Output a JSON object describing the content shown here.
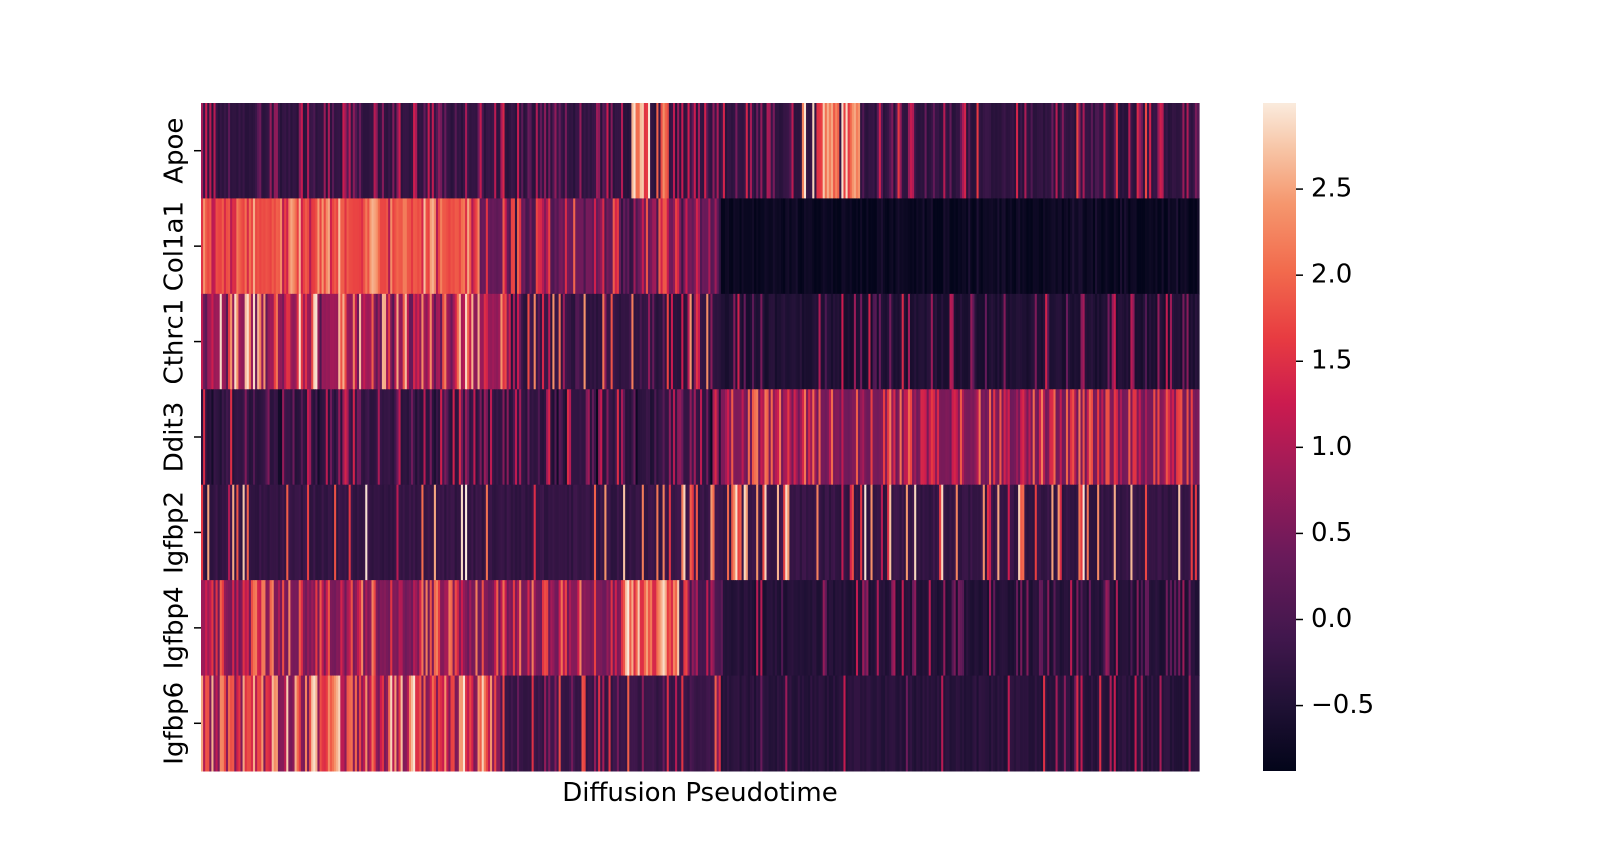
{
  "chart_data": {
    "type": "heatmap",
    "xlabel": "Diffusion Pseudotime",
    "ylabel": "",
    "rows": [
      "Apoe",
      "Col1a1",
      "Cthrc1",
      "Ddit3",
      "Igfbp2",
      "Igfbp4",
      "Igfbp6"
    ],
    "x_ticks": "none",
    "colormap": "rocket",
    "colorbar": {
      "vmin": -0.88,
      "vmax": 3.0,
      "ticks": [
        -0.5,
        0.0,
        0.5,
        1.0,
        1.5,
        2.0,
        2.5
      ],
      "tick_labels": [
        "−0.5",
        "0.0",
        "0.5",
        "1.0",
        "1.5",
        "2.0",
        "2.5"
      ]
    },
    "column_count": 480,
    "row_profiles": [
      {
        "gene": "Apoe",
        "segments": [
          {
            "pseudotime_fraction": [
              0.0,
              0.43
            ],
            "base": -0.3,
            "spike_prob": 0.35,
            "spike_range": [
              0.0,
              1.4
            ]
          },
          {
            "pseudotime_fraction": [
              0.43,
              0.47
            ],
            "base": -0.3,
            "spike_prob": 0.7,
            "spike_range": [
              1.5,
              3.0
            ]
          },
          {
            "pseudotime_fraction": [
              0.47,
              0.6
            ],
            "base": -0.3,
            "spike_prob": 0.35,
            "spike_range": [
              0.0,
              1.4
            ]
          },
          {
            "pseudotime_fraction": [
              0.6,
              0.66
            ],
            "base": -0.3,
            "spike_prob": 0.7,
            "spike_range": [
              1.5,
              3.0
            ]
          },
          {
            "pseudotime_fraction": [
              0.66,
              1.0
            ],
            "base": -0.3,
            "spike_prob": 0.35,
            "spike_range": [
              0.0,
              1.8
            ]
          }
        ]
      },
      {
        "gene": "Col1a1",
        "segments": [
          {
            "pseudotime_fraction": [
              0.0,
              0.28
            ],
            "base": 1.8,
            "spike_prob": 0.6,
            "spike_range": [
              1.0,
              2.7
            ]
          },
          {
            "pseudotime_fraction": [
              0.28,
              0.52
            ],
            "base": 0.4,
            "spike_prob": 0.55,
            "spike_range": [
              -0.3,
              2.0
            ]
          },
          {
            "pseudotime_fraction": [
              0.52,
              1.0
            ],
            "base": -0.8,
            "spike_prob": 0.15,
            "spike_range": [
              -0.7,
              -0.5
            ]
          }
        ]
      },
      {
        "gene": "Cthrc1",
        "segments": [
          {
            "pseudotime_fraction": [
              0.0,
              0.3
            ],
            "base": 0.8,
            "spike_prob": 0.65,
            "spike_range": [
              0.0,
              3.0
            ]
          },
          {
            "pseudotime_fraction": [
              0.3,
              0.52
            ],
            "base": -0.3,
            "spike_prob": 0.45,
            "spike_range": [
              -0.5,
              2.5
            ]
          },
          {
            "pseudotime_fraction": [
              0.52,
              1.0
            ],
            "base": -0.5,
            "spike_prob": 0.2,
            "spike_range": [
              0.0,
              1.5
            ]
          }
        ]
      },
      {
        "gene": "Ddit3",
        "segments": [
          {
            "pseudotime_fraction": [
              0.0,
              0.52
            ],
            "base": -0.3,
            "spike_prob": 0.5,
            "spike_range": [
              -0.8,
              1.5
            ]
          },
          {
            "pseudotime_fraction": [
              0.52,
              1.0
            ],
            "base": 0.5,
            "spike_prob": 0.6,
            "spike_range": [
              0.5,
              2.2
            ]
          }
        ]
      },
      {
        "gene": "Igfbp2",
        "segments": [
          {
            "pseudotime_fraction": [
              0.0,
              0.45
            ],
            "base": -0.25,
            "spike_prob": 0.08,
            "spike_range": [
              1.0,
              3.0
            ]
          },
          {
            "pseudotime_fraction": [
              0.45,
              0.6
            ],
            "base": -0.2,
            "spike_prob": 0.25,
            "spike_range": [
              1.5,
              3.0
            ]
          },
          {
            "pseudotime_fraction": [
              0.6,
              1.0
            ],
            "base": -0.25,
            "spike_prob": 0.18,
            "spike_range": [
              1.0,
              3.0
            ]
          }
        ]
      },
      {
        "gene": "Igfbp4",
        "segments": [
          {
            "pseudotime_fraction": [
              0.0,
              0.42
            ],
            "base": 0.5,
            "spike_prob": 0.55,
            "spike_range": [
              0.5,
              2.3
            ]
          },
          {
            "pseudotime_fraction": [
              0.42,
              0.48
            ],
            "base": 1.5,
            "spike_prob": 0.7,
            "spike_range": [
              1.8,
              3.0
            ]
          },
          {
            "pseudotime_fraction": [
              0.48,
              0.52
            ],
            "base": 0.0,
            "spike_prob": 0.4,
            "spike_range": [
              0.3,
              1.8
            ]
          },
          {
            "pseudotime_fraction": [
              0.52,
              1.0
            ],
            "base": -0.45,
            "spike_prob": 0.2,
            "spike_range": [
              0.0,
              1.2
            ]
          }
        ]
      },
      {
        "gene": "Igfbp6",
        "segments": [
          {
            "pseudotime_fraction": [
              0.0,
              0.3
            ],
            "base": 0.6,
            "spike_prob": 0.7,
            "spike_range": [
              1.0,
              3.0
            ]
          },
          {
            "pseudotime_fraction": [
              0.3,
              0.52
            ],
            "base": -0.2,
            "spike_prob": 0.35,
            "spike_range": [
              0.0,
              2.0
            ]
          },
          {
            "pseudotime_fraction": [
              0.52,
              1.0
            ],
            "base": -0.4,
            "spike_prob": 0.07,
            "spike_range": [
              0.3,
              1.5
            ]
          }
        ]
      }
    ]
  }
}
